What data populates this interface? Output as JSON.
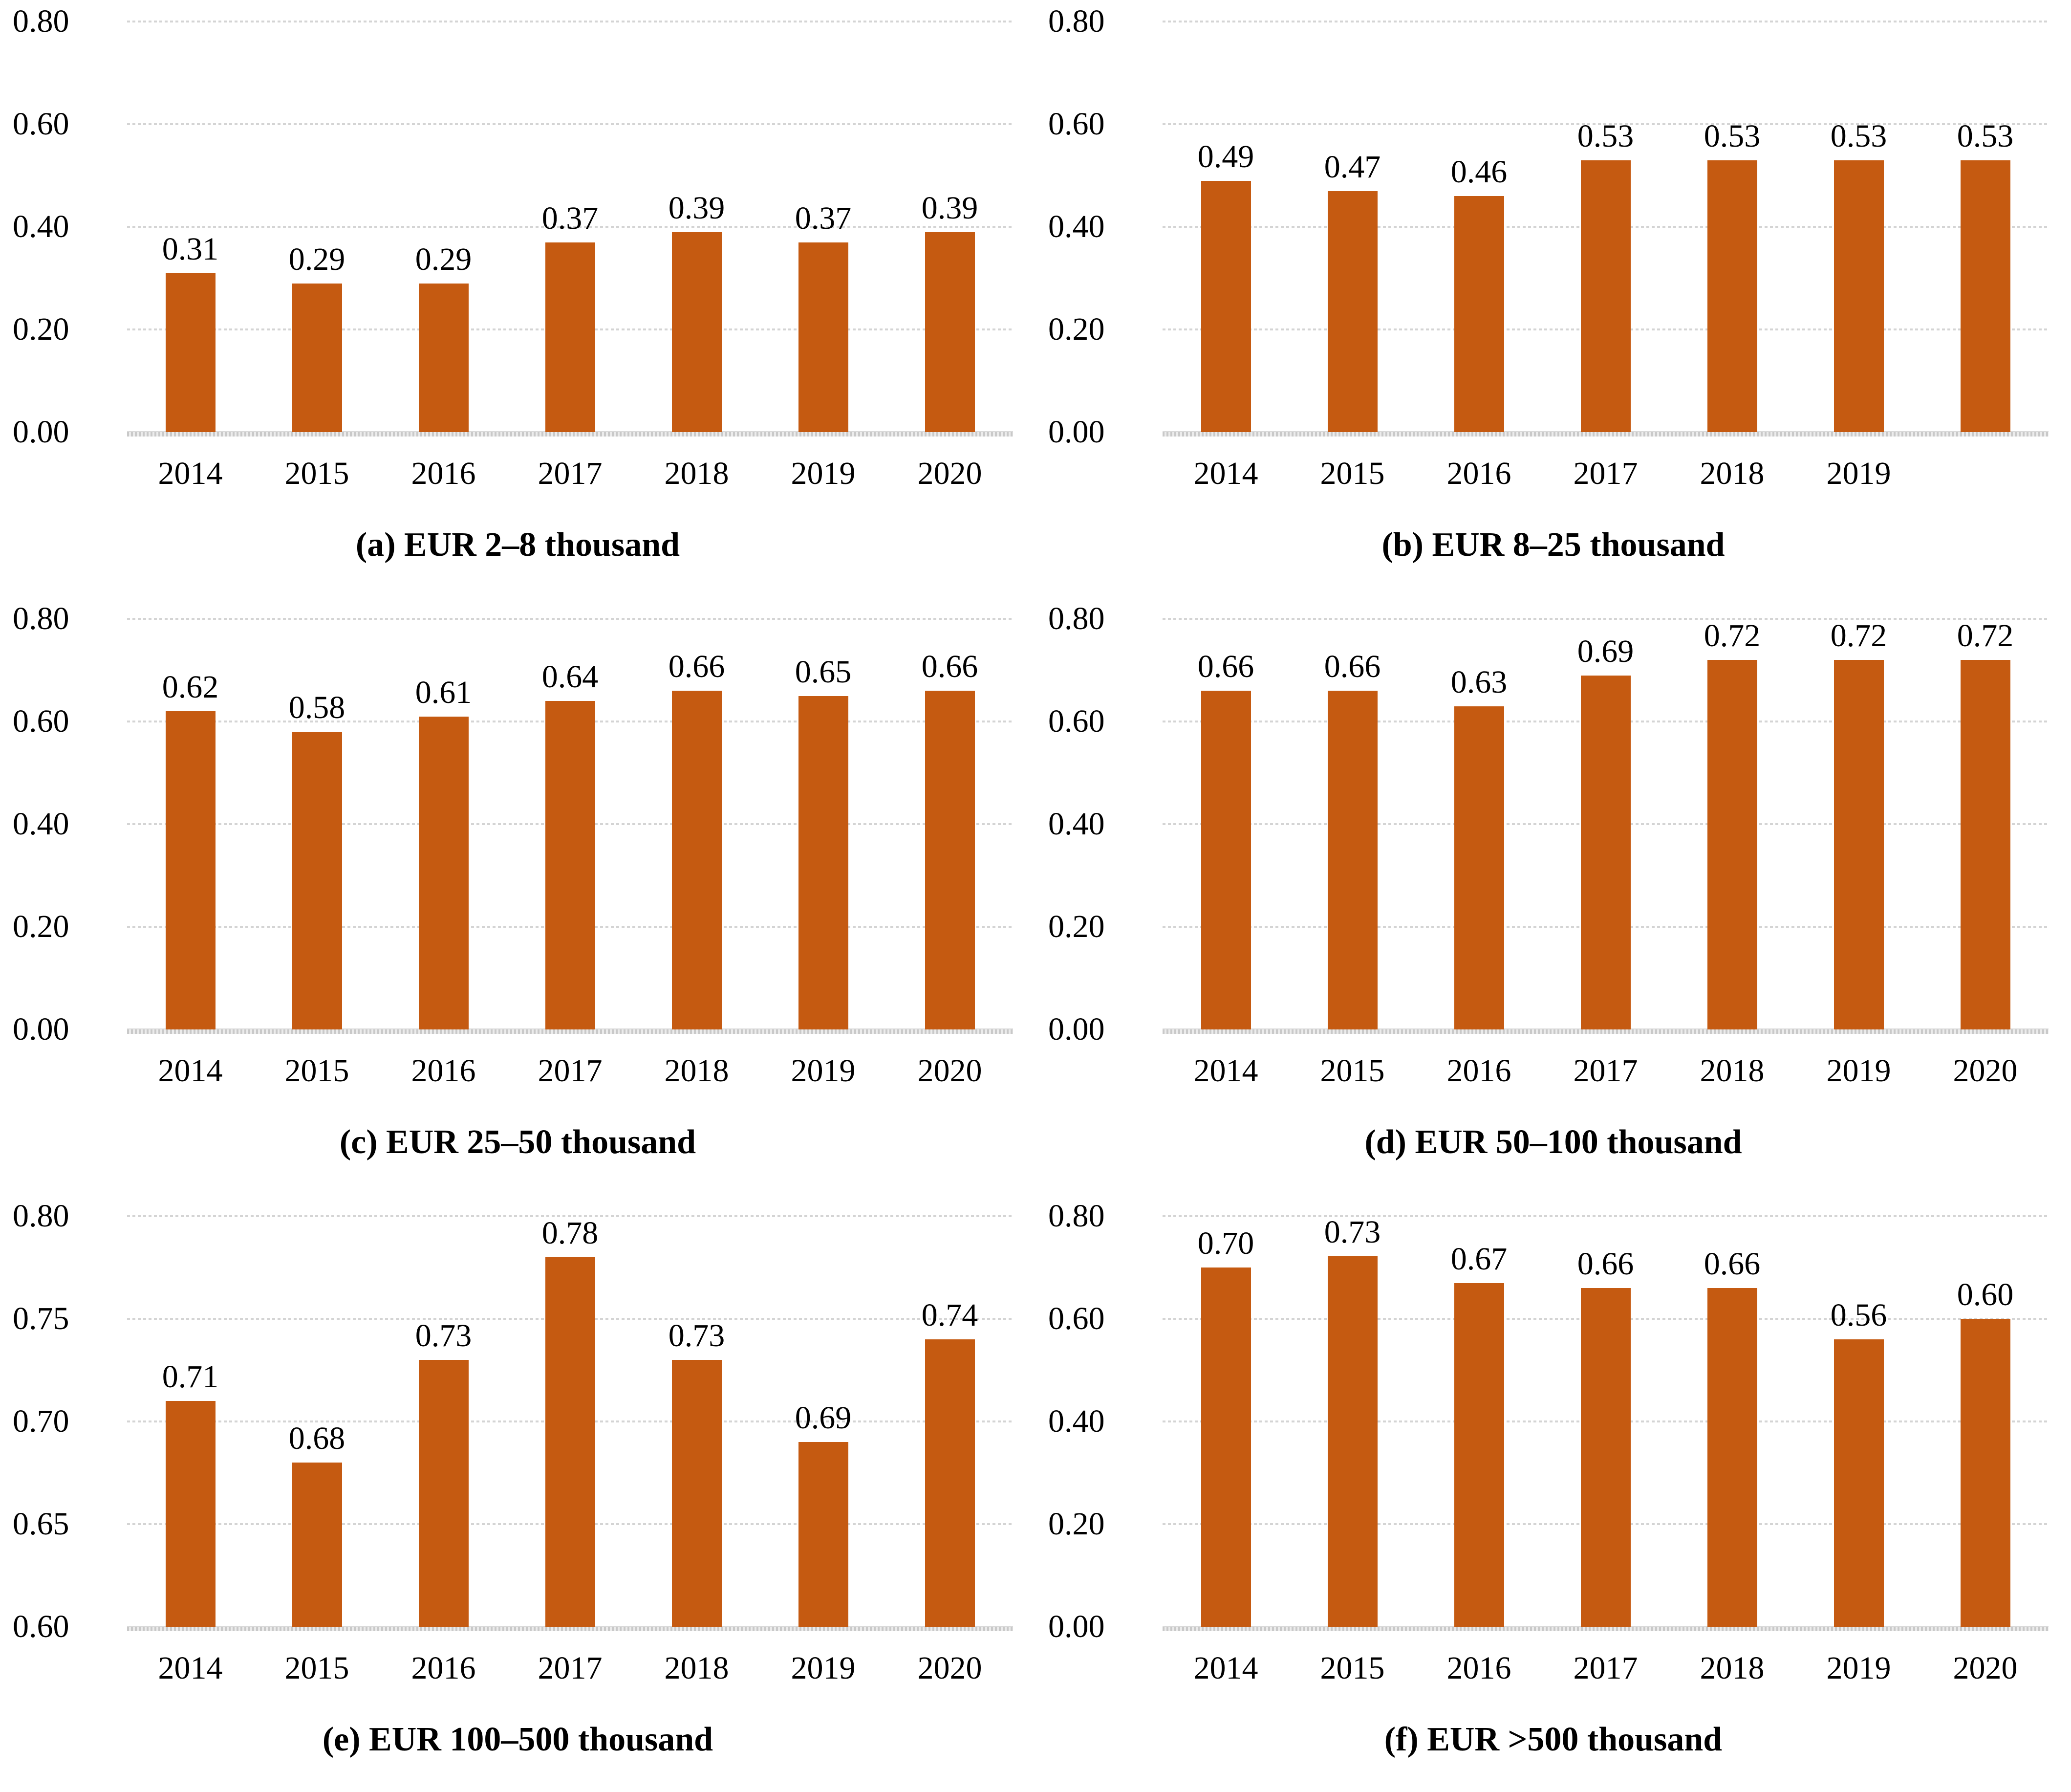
{
  "figure": {
    "bar_color": "#C55A11",
    "gridline_color": "#D9D9D9",
    "text_color": "#000000",
    "background": "#FFFFFF"
  },
  "chart_data": [
    {
      "id": "a",
      "type": "bar",
      "caption": "(a) EUR 2–8 thousand",
      "categories": [
        "2014",
        "2015",
        "2016",
        "2017",
        "2018",
        "2019",
        "2020"
      ],
      "values": [
        0.31,
        0.29,
        0.29,
        0.37,
        0.39,
        0.37,
        0.39
      ],
      "value_labels": [
        "0.31",
        "0.29",
        "0.29",
        "0.37",
        "0.39",
        "0.37",
        "0.39"
      ],
      "ylim": [
        0.0,
        0.8
      ],
      "yticks": [
        0.8,
        0.6,
        0.4,
        0.2,
        0.0
      ],
      "ytick_labels": [
        "0.80",
        "0.60",
        "0.40",
        "0.20",
        "0.00"
      ],
      "grid": true,
      "legend": "none"
    },
    {
      "id": "b",
      "type": "bar",
      "caption": "(b) EUR 8–25 thousand",
      "categories": [
        "2014",
        "2015",
        "2016",
        "2017",
        "2018",
        "2019",
        ""
      ],
      "values": [
        0.49,
        0.47,
        0.46,
        0.53,
        0.53,
        0.53,
        0.53
      ],
      "value_labels": [
        "0.49",
        "0.47",
        "0.46",
        "0.53",
        "0.53",
        "0.53",
        "0.53"
      ],
      "ylim": [
        0.0,
        0.8
      ],
      "yticks": [
        0.8,
        0.6,
        0.4,
        0.2,
        0.0
      ],
      "ytick_labels": [
        "0.80",
        "0.60",
        "0.40",
        "0.20",
        "0.00"
      ],
      "grid": true,
      "legend": "none"
    },
    {
      "id": "c",
      "type": "bar",
      "caption": "(c) EUR 25–50 thousand",
      "categories": [
        "2014",
        "2015",
        "2016",
        "2017",
        "2018",
        "2019",
        "2020"
      ],
      "values": [
        0.62,
        0.58,
        0.61,
        0.64,
        0.66,
        0.65,
        0.66
      ],
      "value_labels": [
        "0.62",
        "0.58",
        "0.61",
        "0.64",
        "0.66",
        "0.65",
        "0.66"
      ],
      "ylim": [
        0.0,
        0.8
      ],
      "yticks": [
        0.8,
        0.6,
        0.4,
        0.2,
        0.0
      ],
      "ytick_labels": [
        "0.80",
        "0.60",
        "0.40",
        "0.20",
        "0.00"
      ],
      "grid": true,
      "legend": "none"
    },
    {
      "id": "d",
      "type": "bar",
      "caption": "(d) EUR 50–100 thousand",
      "categories": [
        "2014",
        "2015",
        "2016",
        "2017",
        "2018",
        "2019",
        "2020"
      ],
      "values": [
        0.66,
        0.66,
        0.63,
        0.69,
        0.72,
        0.72,
        0.72
      ],
      "value_labels": [
        "0.66",
        "0.66",
        "0.63",
        "0.69",
        "0.72",
        "0.72",
        "0.72"
      ],
      "ylim": [
        0.0,
        0.8
      ],
      "yticks": [
        0.8,
        0.6,
        0.4,
        0.2,
        0.0
      ],
      "ytick_labels": [
        "0.80",
        "0.60",
        "0.40",
        "0.20",
        "0.00"
      ],
      "grid": true,
      "legend": "none"
    },
    {
      "id": "e",
      "type": "bar",
      "caption": "(e) EUR 100–500 thousand",
      "categories": [
        "2014",
        "2015",
        "2016",
        "2017",
        "2018",
        "2019",
        "2020"
      ],
      "values": [
        0.71,
        0.68,
        0.73,
        0.78,
        0.73,
        0.69,
        0.74
      ],
      "value_labels": [
        "0.71",
        "0.68",
        "0.73",
        "0.78",
        "0.73",
        "0.69",
        "0.74"
      ],
      "ylim": [
        0.6,
        0.8
      ],
      "yticks": [
        0.8,
        0.75,
        0.7,
        0.65,
        0.6
      ],
      "ytick_labels": [
        "0.80",
        "0.75",
        "0.70",
        "0.65",
        "0.60"
      ],
      "grid": true,
      "legend": "none"
    },
    {
      "id": "f",
      "type": "bar",
      "caption": "(f) EUR >500 thousand",
      "categories": [
        "2014",
        "2015",
        "2016",
        "2017",
        "2018",
        "2019",
        "2020"
      ],
      "values": [
        0.7,
        0.73,
        0.67,
        0.66,
        0.66,
        0.56,
        0.6
      ],
      "value_labels": [
        "0.70",
        "0.73",
        "0.67",
        "0.66",
        "0.66",
        "0.56",
        "0.60"
      ],
      "ylim": [
        0.0,
        0.8
      ],
      "yticks": [
        0.8,
        0.6,
        0.4,
        0.2,
        0.0
      ],
      "ytick_labels": [
        "0.80",
        "0.60",
        "0.40",
        "0.20",
        "0.00"
      ],
      "grid": true,
      "legend": "none"
    }
  ]
}
